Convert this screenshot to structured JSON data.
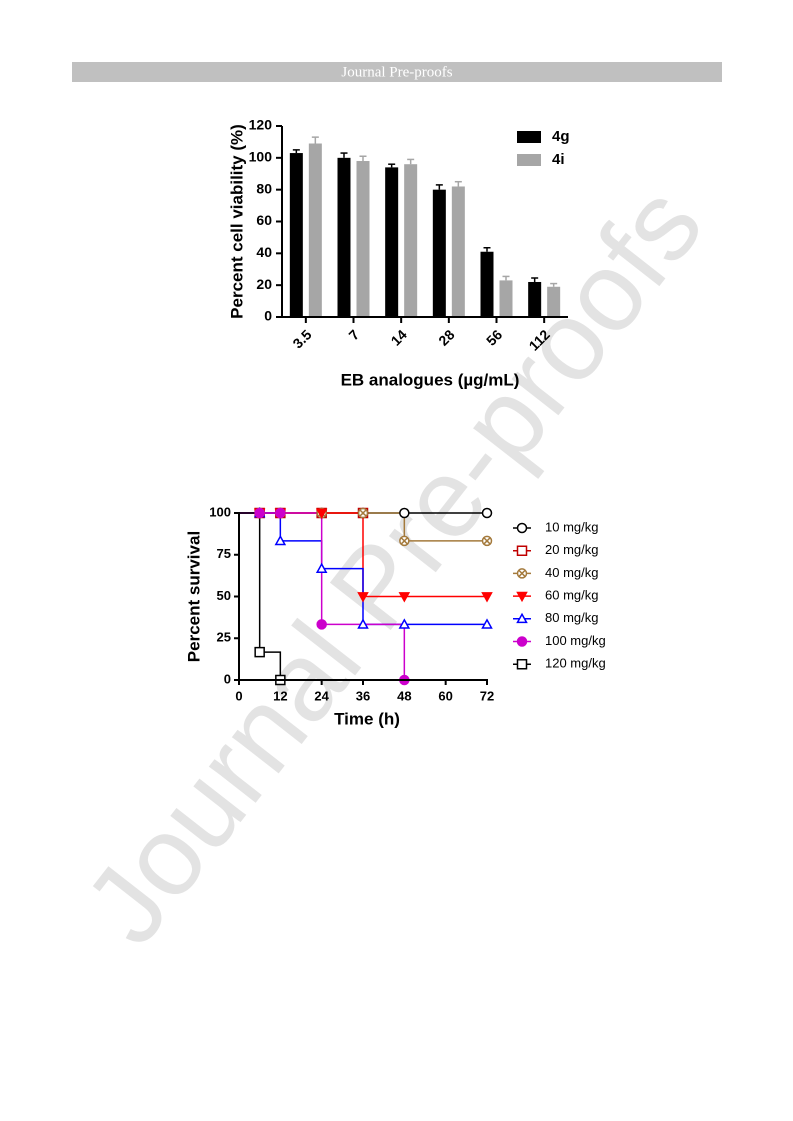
{
  "header": {
    "title": "Journal Pre-proofs"
  },
  "watermark": "Journal Pre-proofs",
  "chart_data": [
    {
      "type": "bar",
      "xlabel": "EB analogues (µg/mL)",
      "ylabel": "Percent cell viability (%)",
      "categories": [
        "3.5",
        "7",
        "14",
        "28",
        "56",
        "112"
      ],
      "series": [
        {
          "name": "4g",
          "color": "#000000",
          "values": [
            103,
            100,
            94,
            80,
            41,
            22
          ],
          "errors": [
            2,
            3,
            2,
            3,
            2.5,
            2.5
          ]
        },
        {
          "name": "4i",
          "color": "#a6a6a6",
          "values": [
            109,
            98,
            96,
            82,
            23,
            19
          ],
          "errors": [
            4,
            3,
            3,
            3,
            2.5,
            2
          ]
        }
      ],
      "ylim": [
        0,
        120
      ],
      "yticks": [
        0,
        20,
        40,
        60,
        80,
        100,
        120
      ],
      "legend": "top-right"
    },
    {
      "type": "step",
      "xlabel": "Time (h)",
      "ylabel": "Percent survival",
      "series": [
        {
          "name": "10 mg/kg",
          "color": "#000000",
          "marker": "circle-open",
          "x": [
            6,
            12,
            24,
            36,
            48,
            72
          ],
          "values": [
            100,
            100,
            100,
            100,
            100,
            100
          ]
        },
        {
          "name": "20 mg/kg",
          "color": "#c00000",
          "marker": "square-open",
          "x": [
            6,
            12,
            24,
            36
          ],
          "values": [
            100,
            100,
            100,
            100
          ]
        },
        {
          "name": "40 mg/kg",
          "color": "#a47a3c",
          "marker": "circle-x",
          "x": [
            6,
            12,
            24,
            36,
            48,
            72
          ],
          "values": [
            100,
            100,
            100,
            100,
            83.3,
            83.3
          ]
        },
        {
          "name": "60 mg/kg",
          "color": "#ff0000",
          "marker": "triangle-down",
          "x": [
            6,
            12,
            24,
            36,
            48,
            72
          ],
          "values": [
            100,
            100,
            100,
            50,
            50,
            50
          ]
        },
        {
          "name": "80 mg/kg",
          "color": "#0000ff",
          "marker": "triangle-open",
          "x": [
            6,
            12,
            24,
            36,
            48,
            72
          ],
          "values": [
            100,
            83.3,
            66.7,
            33.3,
            33.3,
            33.3
          ]
        },
        {
          "name": "100 mg/kg",
          "color": "#cc00cc",
          "marker": "circle",
          "x": [
            6,
            12,
            24,
            48
          ],
          "values": [
            100,
            100,
            33.3,
            0
          ]
        },
        {
          "name": "120 mg/kg",
          "color": "#000000",
          "marker": "square-open",
          "x": [
            6,
            12
          ],
          "values": [
            16.7,
            0
          ]
        }
      ],
      "xlim": [
        0,
        72
      ],
      "xticks": [
        0,
        12,
        24,
        36,
        48,
        60,
        72
      ],
      "ylim": [
        0,
        100
      ],
      "yticks": [
        0,
        25,
        50,
        75,
        100
      ],
      "legend": "right"
    }
  ]
}
